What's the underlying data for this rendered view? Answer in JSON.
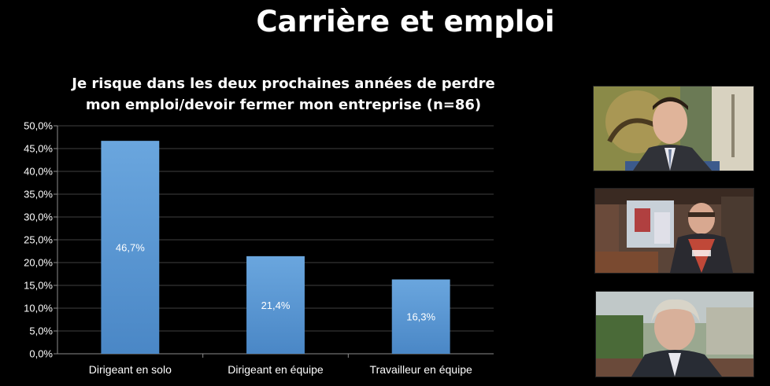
{
  "slide": {
    "title": "Carrière et emploi"
  },
  "chart_data": {
    "type": "bar",
    "title_lines": [
      "Je risque dans les deux prochaines années de perdre",
      "mon emploi/devoir fermer mon entreprise (n=86)"
    ],
    "categories": [
      "Dirigeant en solo",
      "Dirigeant en équipe",
      "Travailleur en équipe"
    ],
    "values": [
      46.7,
      21.4,
      16.3
    ],
    "data_labels": [
      "46,7%",
      "21,4%",
      "16,3%"
    ],
    "ylim": [
      0,
      50
    ],
    "yticks": [
      0,
      5,
      10,
      15,
      20,
      25,
      30,
      35,
      40,
      45,
      50
    ],
    "ytick_labels": [
      "0,0%",
      "5,0%",
      "10,0%",
      "15,0%",
      "20,0%",
      "25,0%",
      "30,0%",
      "35,0%",
      "40,0%",
      "45,0%",
      "50,0%"
    ],
    "grid": true,
    "legend": "none",
    "bar_color": "#5b9bd5",
    "grid_color": "#404040"
  },
  "photos": [
    {
      "name": "portrait-man-suit",
      "icon": "portrait-photo"
    },
    {
      "name": "portrait-man-shop",
      "icon": "portrait-photo"
    },
    {
      "name": "portrait-man-grey-hair",
      "icon": "portrait-photo"
    }
  ]
}
